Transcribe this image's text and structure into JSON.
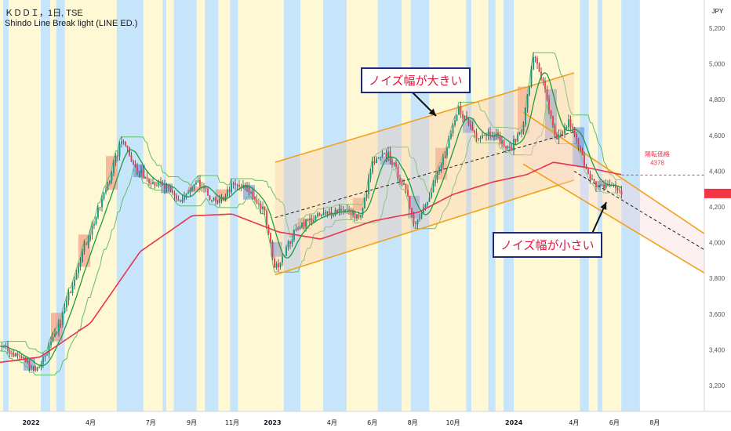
{
  "header": {
    "symbol_line": "ＫＤＤＩ，1日, TSE",
    "indicator_line": "Shindo Line Break light (LINE ED.)"
  },
  "price_scale": {
    "currency": "JPY",
    "ticks": [
      "5,200",
      "5,000",
      "4,800",
      "4,600",
      "4,400",
      "4,200",
      "4,000",
      "3,800",
      "3,600",
      "3,400",
      "3,200"
    ]
  },
  "time_axis": {
    "labels": [
      "2022",
      "4月",
      "7月",
      "9月",
      "11月",
      "2023",
      "4月",
      "6月",
      "8月",
      "10月",
      "2024",
      "4月",
      "6月",
      "8月"
    ]
  },
  "reversal": {
    "label": "陽転価格",
    "value": "4378"
  },
  "annotations": {
    "large_noise": "ノイズ幅が大きい",
    "small_noise": "ノイズ幅が小さい"
  },
  "colors": {
    "candle_up": "#089981",
    "candle_down": "#f23645",
    "ma_long": "#e8354a",
    "ma_short": "#1f9d3a",
    "band": "#5fbf6a",
    "channel": "#f2a019",
    "box_blue": "#3d6fe0",
    "box_red": "#f06a5a",
    "bg_yellow": "#fff3b8",
    "bg_blue": "#b3dbf8"
  },
  "chart_data": {
    "type": "candlestick",
    "title": "",
    "xlabel": "",
    "ylabel": "",
    "ylim": [
      3150,
      5250
    ],
    "x_range": [
      "2021-11-15",
      "2024-10-15"
    ],
    "series": [
      {
        "name": "",
        "x": [
          "2021-11-15",
          "2021-12-15",
          "2022-01-10",
          "2022-02-10",
          "2022-03-15",
          "2022-04-15",
          "2022-05-20",
          "2022-06-10",
          "2022-07-01",
          "2022-07-25",
          "2022-08-15",
          "2022-09-10",
          "2022-10-10",
          "2022-11-01",
          "2022-11-25",
          "2022-12-20",
          "2023-01-05",
          "2023-02-10",
          "2023-03-15",
          "2023-04-15",
          "2023-05-15",
          "2023-06-01",
          "2023-06-25",
          "2023-07-20",
          "2023-08-05",
          "2023-08-25",
          "2023-09-20",
          "2023-10-10",
          "2023-11-05",
          "2023-12-01",
          "2023-12-25",
          "2024-01-15",
          "2024-02-01",
          "2024-02-15",
          "2024-03-05",
          "2024-03-25",
          "2024-04-15",
          "2024-05-05",
          "2024-05-25",
          "2024-06-12"
        ],
        "values": [
          3420,
          3360,
          3290,
          3500,
          3900,
          4200,
          4590,
          4400,
          4350,
          4300,
          4230,
          4330,
          4210,
          4320,
          4300,
          4170,
          3850,
          4100,
          4150,
          4190,
          4140,
          4440,
          4500,
          4300,
          4100,
          4260,
          4500,
          4750,
          4600,
          4620,
          4510,
          4660,
          5060,
          4880,
          4560,
          4680,
          4460,
          4300,
          4330,
          4280
        ]
      },
      {
        "name": "",
        "x": [
          "2021-11-15",
          "2022-01-15",
          "2022-04-01",
          "2022-06-15",
          "2022-09-01",
          "2022-11-01",
          "2023-01-10",
          "2023-03-15",
          "2023-06-01",
          "2023-08-10",
          "2023-10-01",
          "2023-12-01",
          "2024-01-20",
          "2024-03-01",
          "2024-04-20",
          "2024-06-12"
        ],
        "values": [
          3330,
          3360,
          3550,
          3950,
          4150,
          4160,
          4060,
          4020,
          4120,
          4170,
          4270,
          4340,
          4380,
          4450,
          4420,
          4380
        ]
      }
    ],
    "channels": [
      {
        "name": "",
        "x": [
          "2023-01-05",
          "2024-04-01"
        ],
        "upper": [
          4450,
          4950
        ],
        "lower": [
          3820,
          4350
        ]
      },
      {
        "name": "",
        "x": [
          "2024-01-15",
          "2024-10-15"
        ],
        "upper": [
          4730,
          4050
        ],
        "lower": [
          4440,
          3830
        ]
      }
    ],
    "trendlines": [
      {
        "x": [
          "2023-01-05",
          "2024-04-01"
        ],
        "y": [
          4140,
          4620
        ]
      },
      {
        "x": [
          "2024-04-01",
          "2024-10-15"
        ],
        "y": [
          4400,
          3960
        ]
      }
    ],
    "reversal_price": 4378,
    "last_price": 4275
  }
}
